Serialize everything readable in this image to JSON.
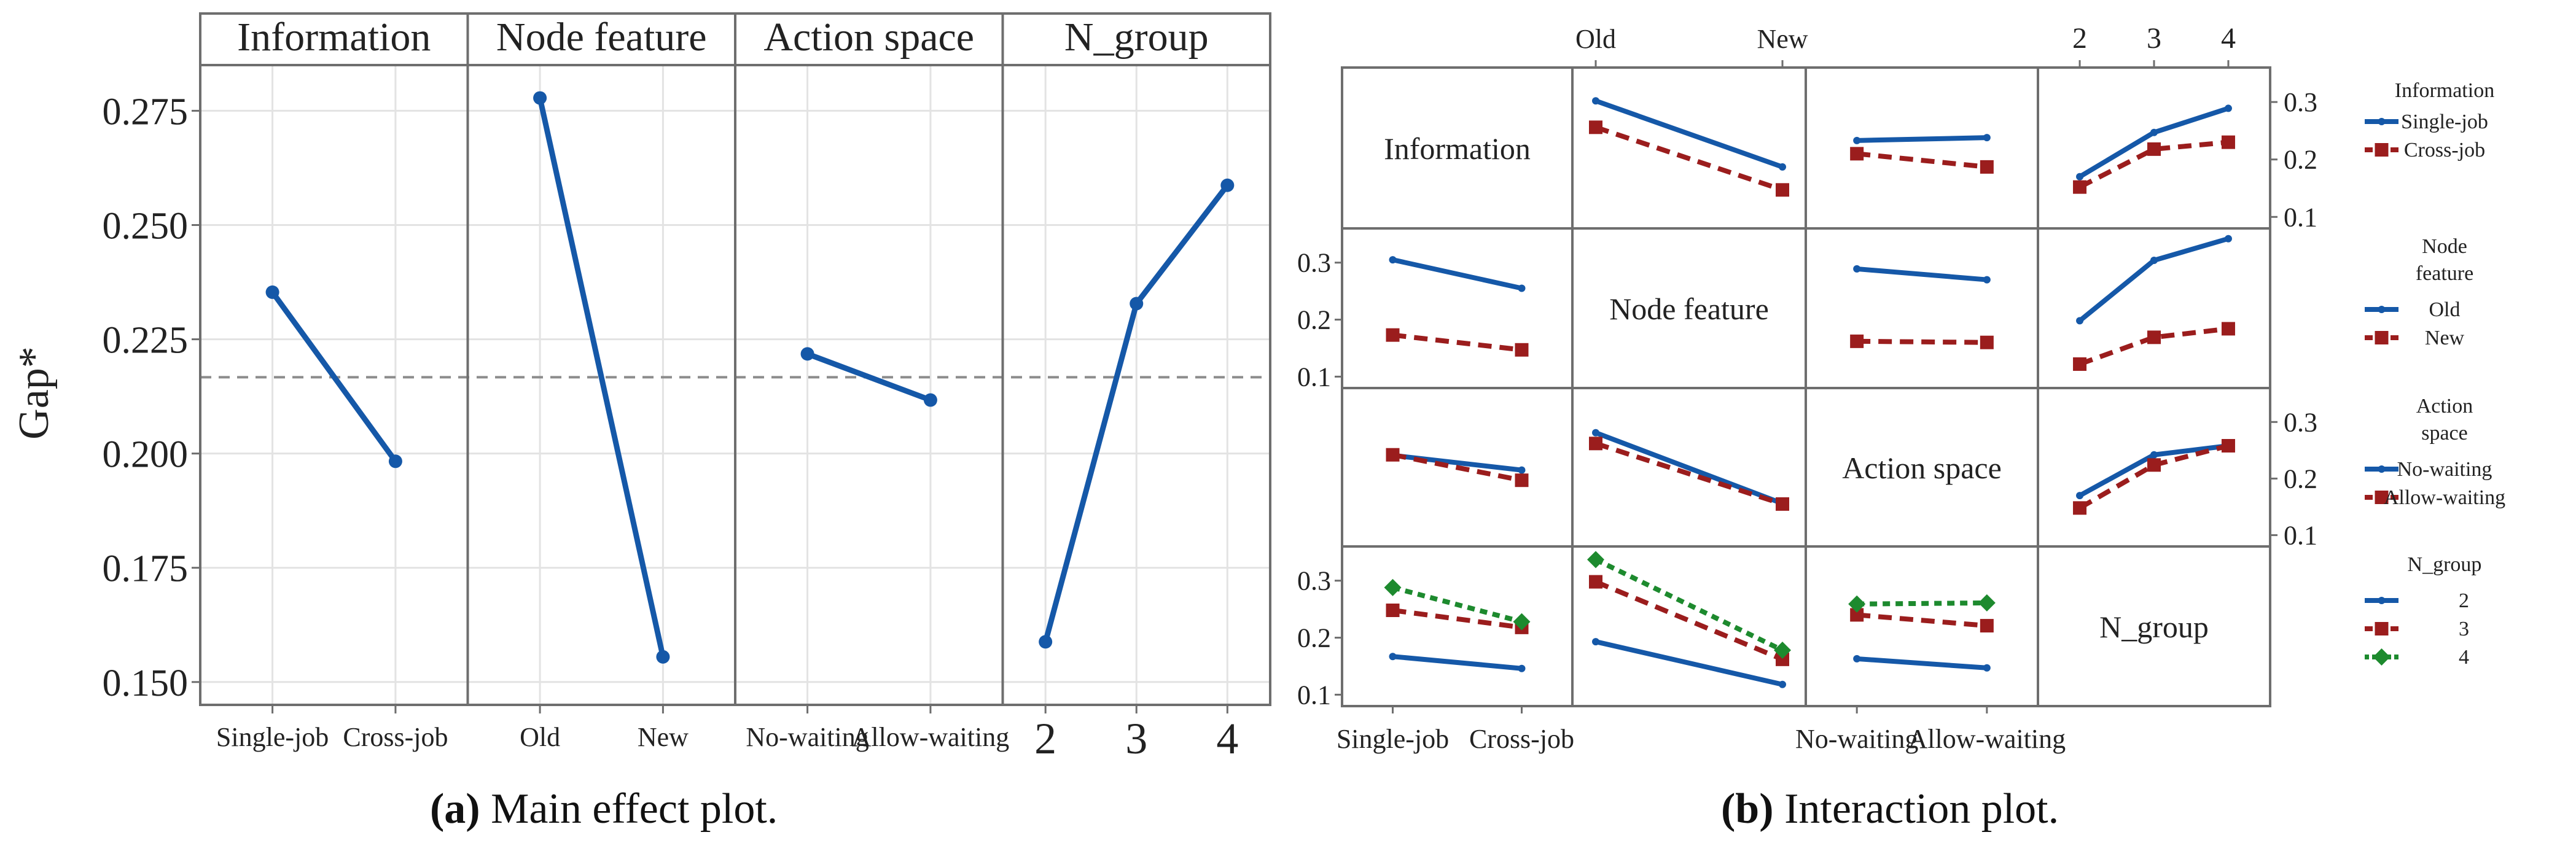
{
  "colors": {
    "blue": "#1558a8",
    "red": "#9b1d1d",
    "green": "#1d8a2e",
    "mean_line": "#8c8c8c",
    "frame": "#6e6e6e",
    "grid": "#e3e3e3"
  },
  "captions": {
    "a_label": "(a)",
    "a_text": " Main effect plot.",
    "b_label": "(b)",
    "b_text": " Interaction plot."
  },
  "chart_data": [
    {
      "type": "line",
      "panel": "(a)",
      "ylabel": "Gap*",
      "ylim": [
        0.145,
        0.285
      ],
      "yticks": [
        "0.150",
        "0.175",
        "0.200",
        "0.225",
        "0.250",
        "0.275"
      ],
      "ytick_values": [
        0.15,
        0.175,
        0.2,
        0.225,
        0.25,
        0.275
      ],
      "overall_mean": 0.2167,
      "grid": true,
      "facets": [
        {
          "title": "Information",
          "categories": [
            "Single-job",
            "Cross-job"
          ],
          "values": [
            0.2353,
            0.1983
          ]
        },
        {
          "title": "Node feature",
          "categories": [
            "Old",
            "New"
          ],
          "values": [
            0.2778,
            0.1555
          ]
        },
        {
          "title": "Action space",
          "categories": [
            "No-waiting",
            "Allow-waiting"
          ],
          "values": [
            0.2218,
            0.2117
          ]
        },
        {
          "title": "N_group",
          "categories": [
            "2",
            "3",
            "4"
          ],
          "values": [
            0.1588,
            0.2328,
            0.2587
          ]
        }
      ]
    },
    {
      "type": "line",
      "panel": "(b)",
      "ylim": [
        0.08,
        0.36
      ],
      "yticks": [
        "0.1",
        "0.2",
        "0.3"
      ],
      "ytick_values": [
        0.1,
        0.2,
        0.3
      ],
      "factors": [
        "Information",
        "Node feature",
        "Action space",
        "N_group"
      ],
      "levels": [
        [
          "Single-job",
          "Cross-job"
        ],
        [
          "Old",
          "New"
        ],
        [
          "No-waiting",
          "Allow-waiting"
        ],
        [
          "2",
          "3",
          "4"
        ]
      ],
      "bottom_tick_labels": [
        [
          "Single-job",
          "Cross-job"
        ],
        [],
        [
          "No-waiting",
          "Allow-waiting"
        ],
        []
      ],
      "top_tick_labels": [
        [],
        [
          "Old",
          "New"
        ],
        [],
        [
          "2",
          "3",
          "4"
        ]
      ],
      "cells": [
        {
          "row": 0,
          "col": 1,
          "series": [
            {
              "level": 0,
              "values": [
                0.302,
                0.187
              ]
            },
            {
              "level": 1,
              "values": [
                0.256,
                0.147
              ]
            }
          ]
        },
        {
          "row": 0,
          "col": 2,
          "series": [
            {
              "level": 0,
              "values": [
                0.233,
                0.238
              ]
            },
            {
              "level": 1,
              "values": [
                0.21,
                0.187
              ]
            }
          ]
        },
        {
          "row": 0,
          "col": 3,
          "series": [
            {
              "level": 0,
              "values": [
                0.17,
                0.247,
                0.289
              ]
            },
            {
              "level": 1,
              "values": [
                0.152,
                0.218,
                0.23
              ]
            }
          ]
        },
        {
          "row": 1,
          "col": 0,
          "series": [
            {
              "level": 0,
              "values": [
                0.305,
                0.255
              ]
            },
            {
              "level": 1,
              "values": [
                0.173,
                0.147
              ]
            }
          ]
        },
        {
          "row": 1,
          "col": 2,
          "series": [
            {
              "level": 0,
              "values": [
                0.289,
                0.27
              ]
            },
            {
              "level": 1,
              "values": [
                0.162,
                0.16
              ]
            }
          ]
        },
        {
          "row": 1,
          "col": 3,
          "series": [
            {
              "level": 0,
              "values": [
                0.198,
                0.304,
                0.342
              ]
            },
            {
              "level": 1,
              "values": [
                0.122,
                0.169,
                0.184
              ]
            }
          ]
        },
        {
          "row": 2,
          "col": 0,
          "series": [
            {
              "level": 0,
              "values": [
                0.241,
                0.215
              ]
            },
            {
              "level": 1,
              "values": [
                0.242,
                0.197
              ]
            }
          ]
        },
        {
          "row": 2,
          "col": 1,
          "series": [
            {
              "level": 0,
              "values": [
                0.281,
                0.156
              ]
            },
            {
              "level": 1,
              "values": [
                0.262,
                0.155
              ]
            }
          ]
        },
        {
          "row": 2,
          "col": 3,
          "series": [
            {
              "level": 0,
              "values": [
                0.17,
                0.242,
                0.258
              ]
            },
            {
              "level": 1,
              "values": [
                0.148,
                0.224,
                0.258
              ]
            }
          ]
        },
        {
          "row": 3,
          "col": 0,
          "series": [
            {
              "level": 0,
              "values": [
                0.167,
                0.146
              ]
            },
            {
              "level": 1,
              "values": [
                0.248,
                0.218
              ]
            },
            {
              "level": 2,
              "values": [
                0.288,
                0.228
              ]
            }
          ]
        },
        {
          "row": 3,
          "col": 1,
          "series": [
            {
              "level": 0,
              "values": [
                0.193,
                0.118
              ]
            },
            {
              "level": 1,
              "values": [
                0.298,
                0.162
              ]
            },
            {
              "level": 2,
              "values": [
                0.337,
                0.178
              ]
            }
          ]
        },
        {
          "row": 3,
          "col": 2,
          "series": [
            {
              "level": 0,
              "values": [
                0.163,
                0.147
              ]
            },
            {
              "level": 1,
              "values": [
                0.24,
                0.221
              ]
            },
            {
              "level": 2,
              "values": [
                0.259,
                0.261
              ]
            }
          ]
        }
      ],
      "legends": [
        {
          "title_lines": [
            "Information"
          ],
          "entries": [
            "Single-job",
            "Cross-job"
          ]
        },
        {
          "title_lines": [
            "Node",
            "feature"
          ],
          "entries": [
            "Old",
            "New"
          ]
        },
        {
          "title_lines": [
            "Action",
            "space"
          ],
          "entries": [
            "No-waiting",
            "Allow-waiting"
          ]
        },
        {
          "title_lines": [
            "N_group"
          ],
          "entries": [
            "2",
            "3",
            "4"
          ]
        }
      ]
    }
  ]
}
